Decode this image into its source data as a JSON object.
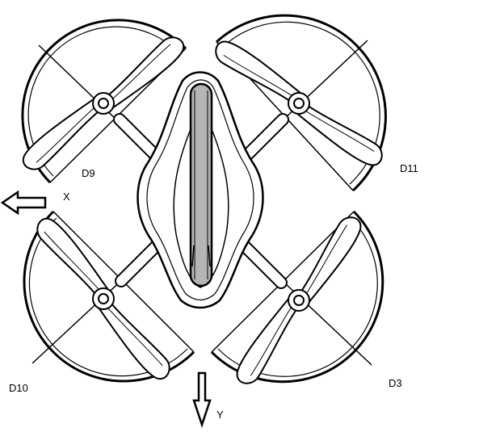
{
  "labels": {
    "d9": "D9",
    "d11": "D11",
    "d10": "D10",
    "d3": "D3",
    "x_axis": "X",
    "y_axis": "Y"
  },
  "colors": {
    "line": "#000000",
    "body_center": "#b5b5b5",
    "background": "#ffffff"
  },
  "icons": {
    "x_arrow": "left-arrow-icon",
    "y_arrow": "down-arrow-icon"
  }
}
